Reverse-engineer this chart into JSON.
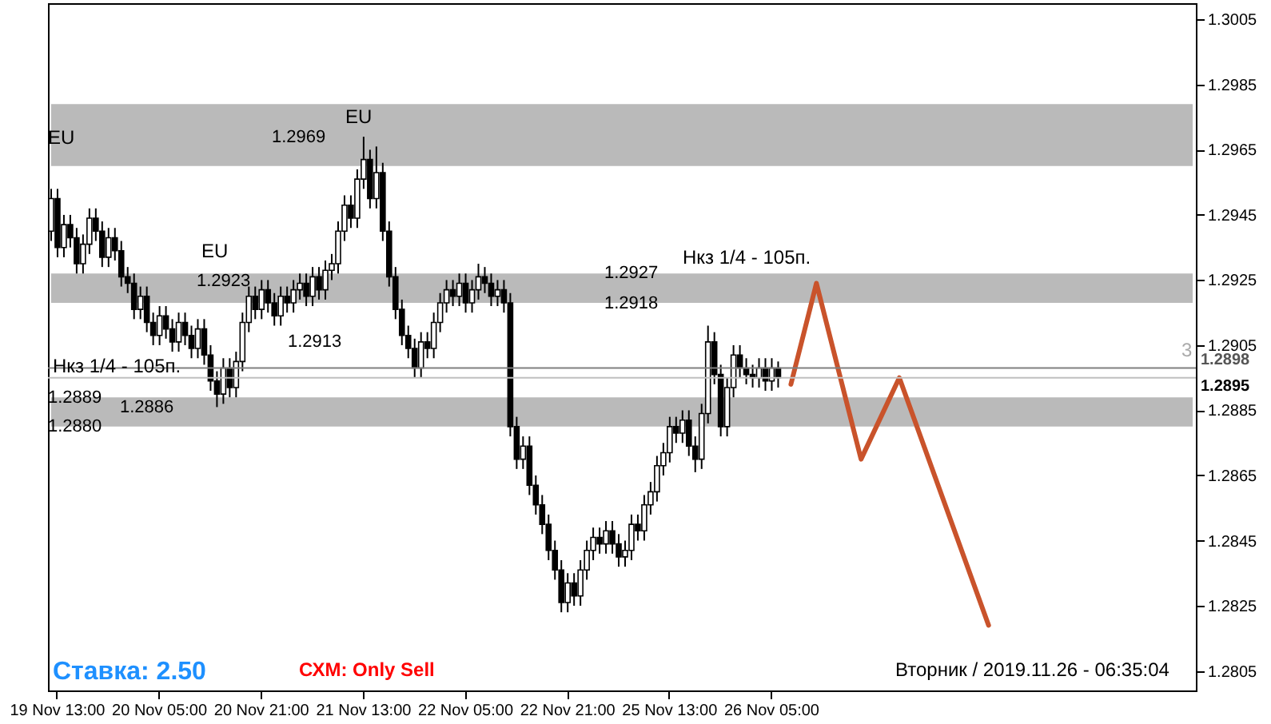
{
  "chart_data": {
    "type": "candlestick",
    "categories": [
      null,
      "19 Nov 13:00",
      null,
      null,
      null,
      null,
      null,
      null,
      null,
      null,
      null,
      null,
      null,
      null,
      null,
      null,
      null,
      "20 Nov 05:00",
      null,
      null,
      null,
      null,
      null,
      null,
      null,
      null,
      null,
      null,
      null,
      null,
      null,
      null,
      null,
      "20 Nov 21:00",
      null,
      null,
      null,
      null,
      null,
      null,
      null,
      null,
      null,
      null,
      null,
      null,
      null,
      null,
      null,
      "21 Nov 13:00",
      null,
      null,
      null,
      null,
      null,
      null,
      null,
      null,
      null,
      null,
      null,
      null,
      null,
      null,
      null,
      "22 Nov 05:00",
      null,
      null,
      null,
      null,
      null,
      null,
      null,
      null,
      null,
      null,
      null,
      null,
      null,
      null,
      null,
      "22 Nov 21:00",
      null,
      null,
      null,
      null,
      null,
      null,
      null,
      null,
      null,
      null,
      null,
      null,
      null,
      null,
      null,
      "25 Nov 13:00",
      null,
      null,
      null,
      null,
      null,
      null,
      null,
      null,
      null,
      null,
      null,
      null,
      null,
      null,
      null,
      "26 Nov 05:00",
      null,
      null,
      null,
      null,
      null,
      null,
      null,
      null,
      null,
      null,
      null,
      null,
      null,
      null,
      null,
      null,
      null,
      null,
      null,
      null,
      null,
      null,
      null,
      null,
      null,
      null,
      null,
      null,
      null,
      null,
      null,
      null,
      null,
      null,
      null,
      null,
      null,
      null,
      null,
      null,
      null,
      null,
      null,
      null,
      null,
      null,
      null,
      null,
      null,
      null,
      null,
      null,
      null,
      null,
      null,
      null,
      null,
      null,
      null,
      null,
      null,
      null,
      null,
      null,
      null,
      null
    ],
    "ohlc": [
      [
        1.294,
        1.2953,
        1.2937,
        1.295
      ],
      [
        1.295,
        1.2953,
        1.2932,
        1.2935
      ],
      [
        1.2935,
        1.2945,
        1.2932,
        1.2942
      ],
      [
        1.2942,
        1.2945,
        1.2935,
        1.2938
      ],
      [
        1.2938,
        1.2941,
        1.2927,
        1.293
      ],
      [
        1.293,
        1.2939,
        1.2927,
        1.2936
      ],
      [
        1.2936,
        1.2947,
        1.2933,
        1.2944
      ],
      [
        1.2944,
        1.2947,
        1.2937,
        1.294
      ],
      [
        1.294,
        1.2943,
        1.2929,
        1.2932
      ],
      [
        1.2932,
        1.2941,
        1.2929,
        1.2938
      ],
      [
        1.2938,
        1.2941,
        1.2931,
        1.2934
      ],
      [
        1.2934,
        1.2937,
        1.2923,
        1.2926
      ],
      [
        1.2926,
        1.2929,
        1.2921,
        1.2924
      ],
      [
        1.2924,
        1.2927,
        1.2913,
        1.2916
      ],
      [
        1.2916,
        1.2923,
        1.2913,
        1.292
      ],
      [
        1.292,
        1.2923,
        1.2909,
        1.2912
      ],
      [
        1.2912,
        1.2915,
        1.2905,
        1.2908
      ],
      [
        1.2908,
        1.2917,
        1.2905,
        1.2914
      ],
      [
        1.2914,
        1.2917,
        1.2907,
        1.291
      ],
      [
        1.291,
        1.2913,
        1.2903,
        1.2906
      ],
      [
        1.2906,
        1.2915,
        1.2903,
        1.2912
      ],
      [
        1.2912,
        1.2915,
        1.2905,
        1.2908
      ],
      [
        1.2908,
        1.2911,
        1.2901,
        1.2904
      ],
      [
        1.2904,
        1.2913,
        1.2901,
        1.291
      ],
      [
        1.291,
        1.2913,
        1.2899,
        1.2902
      ],
      [
        1.2902,
        1.2905,
        1.2891,
        1.2894
      ],
      [
        1.2894,
        1.2897,
        1.2886,
        1.289
      ],
      [
        1.289,
        1.2901,
        1.2887,
        1.2898
      ],
      [
        1.2898,
        1.2901,
        1.2889,
        1.2892
      ],
      [
        1.2892,
        1.2903,
        1.2889,
        1.29
      ],
      [
        1.29,
        1.2915,
        1.2897,
        1.2912
      ],
      [
        1.2912,
        1.2923,
        1.2909,
        1.292
      ],
      [
        1.292,
        1.2923,
        1.2913,
        1.2916
      ],
      [
        1.2916,
        1.2925,
        1.2913,
        1.2922
      ],
      [
        1.2922,
        1.2925,
        1.2915,
        1.2918
      ],
      [
        1.2918,
        1.2921,
        1.2911,
        1.2914
      ],
      [
        1.2914,
        1.2923,
        1.2911,
        1.292
      ],
      [
        1.292,
        1.2923,
        1.2915,
        1.2918
      ],
      [
        1.2918,
        1.2925,
        1.2915,
        1.2922
      ],
      [
        1.2922,
        1.2927,
        1.2919,
        1.2924
      ],
      [
        1.2924,
        1.2927,
        1.2917,
        1.292
      ],
      [
        1.292,
        1.2929,
        1.2917,
        1.2926
      ],
      [
        1.2926,
        1.2929,
        1.2919,
        1.2922
      ],
      [
        1.2922,
        1.2931,
        1.2919,
        1.2928
      ],
      [
        1.2928,
        1.2933,
        1.2925,
        1.293
      ],
      [
        1.293,
        1.2943,
        1.2927,
        1.294
      ],
      [
        1.294,
        1.2951,
        1.2937,
        1.2948
      ],
      [
        1.2948,
        1.2951,
        1.2941,
        1.2944
      ],
      [
        1.2944,
        1.2959,
        1.2941,
        1.2956
      ],
      [
        1.2956,
        1.2969,
        1.2953,
        1.2962
      ],
      [
        1.2962,
        1.2965,
        1.2947,
        1.295
      ],
      [
        1.295,
        1.2966,
        1.2947,
        1.2958
      ],
      [
        1.2958,
        1.2961,
        1.2937,
        1.294
      ],
      [
        1.294,
        1.2943,
        1.2923,
        1.2926
      ],
      [
        1.2926,
        1.2929,
        1.2913,
        1.2916
      ],
      [
        1.2916,
        1.2919,
        1.2905,
        1.2908
      ],
      [
        1.2908,
        1.2911,
        1.2901,
        1.2904
      ],
      [
        1.2904,
        1.2907,
        1.2895,
        1.2898
      ],
      [
        1.2898,
        1.2909,
        1.2895,
        1.2906
      ],
      [
        1.2906,
        1.2909,
        1.2901,
        1.2904
      ],
      [
        1.2904,
        1.2915,
        1.2901,
        1.2912
      ],
      [
        1.2912,
        1.2921,
        1.2909,
        1.2918
      ],
      [
        1.2918,
        1.2925,
        1.2915,
        1.2922
      ],
      [
        1.2922,
        1.2925,
        1.2917,
        1.292
      ],
      [
        1.292,
        1.2927,
        1.2917,
        1.2924
      ],
      [
        1.2924,
        1.2927,
        1.2915,
        1.2918
      ],
      [
        1.2918,
        1.2925,
        1.2915,
        1.2922
      ],
      [
        1.2922,
        1.293,
        1.2919,
        1.2926
      ],
      [
        1.2926,
        1.2929,
        1.2921,
        1.2924
      ],
      [
        1.2924,
        1.2927,
        1.2917,
        1.292
      ],
      [
        1.292,
        1.2925,
        1.2917,
        1.2922
      ],
      [
        1.2922,
        1.2925,
        1.2915,
        1.2918
      ],
      [
        1.2918,
        1.2921,
        1.2877,
        1.288
      ],
      [
        1.288,
        1.2883,
        1.2867,
        1.287
      ],
      [
        1.287,
        1.2877,
        1.2867,
        1.2874
      ],
      [
        1.2874,
        1.2877,
        1.2859,
        1.2862
      ],
      [
        1.2862,
        1.2865,
        1.2853,
        1.2856
      ],
      [
        1.2856,
        1.2859,
        1.2847,
        1.285
      ],
      [
        1.285,
        1.2853,
        1.2839,
        1.2842
      ],
      [
        1.2842,
        1.2845,
        1.2833,
        1.2836
      ],
      [
        1.2836,
        1.2839,
        1.2823,
        1.2826
      ],
      [
        1.2826,
        1.2835,
        1.2823,
        1.2832
      ],
      [
        1.2832,
        1.2835,
        1.2825,
        1.2828
      ],
      [
        1.2828,
        1.2839,
        1.2825,
        1.2836
      ],
      [
        1.2836,
        1.2845,
        1.2833,
        1.2842
      ],
      [
        1.2842,
        1.2849,
        1.2839,
        1.2846
      ],
      [
        1.2846,
        1.2849,
        1.2841,
        1.2844
      ],
      [
        1.2844,
        1.2851,
        1.2841,
        1.2848
      ],
      [
        1.2848,
        1.2851,
        1.2841,
        1.2844
      ],
      [
        1.2844,
        1.2847,
        1.2837,
        1.284
      ],
      [
        1.284,
        1.2845,
        1.2837,
        1.2842
      ],
      [
        1.2842,
        1.2853,
        1.2839,
        1.285
      ],
      [
        1.285,
        1.2853,
        1.2845,
        1.2848
      ],
      [
        1.2848,
        1.2859,
        1.2845,
        1.2856
      ],
      [
        1.2856,
        1.2863,
        1.2853,
        1.286
      ],
      [
        1.286,
        1.2871,
        1.2857,
        1.2868
      ],
      [
        1.2868,
        1.2875,
        1.2865,
        1.2872
      ],
      [
        1.2872,
        1.2883,
        1.2869,
        1.288
      ],
      [
        1.288,
        1.2883,
        1.2875,
        1.2878
      ],
      [
        1.2878,
        1.2885,
        1.2875,
        1.2882
      ],
      [
        1.2882,
        1.2885,
        1.2871,
        1.2874
      ],
      [
        1.2874,
        1.2877,
        1.2866,
        1.287
      ],
      [
        1.287,
        1.2887,
        1.2867,
        1.2884
      ],
      [
        1.2884,
        1.2911,
        1.2881,
        1.2906
      ],
      [
        1.2906,
        1.2909,
        1.2893,
        1.2896
      ],
      [
        1.2896,
        1.2899,
        1.2877,
        1.288
      ],
      [
        1.288,
        1.2895,
        1.2877,
        1.2892
      ],
      [
        1.2892,
        1.2905,
        1.2889,
        1.2902
      ],
      [
        1.2902,
        1.2905,
        1.2895,
        1.2898
      ],
      [
        1.2898,
        1.2901,
        1.2893,
        1.2896
      ],
      [
        1.2896,
        1.2899,
        1.2892,
        1.2895
      ],
      [
        1.2895,
        1.2901,
        1.2892,
        1.2898
      ],
      [
        1.2898,
        1.2901,
        1.2891,
        1.2894
      ],
      [
        1.2894,
        1.2901,
        1.2891,
        1.2898
      ],
      [
        1.2898,
        1.29,
        1.2892,
        1.2895
      ],
      null,
      null,
      null,
      null,
      null,
      null,
      null,
      null,
      null,
      null,
      null,
      null,
      null,
      null,
      null,
      null,
      null,
      null,
      null,
      null,
      null,
      null,
      null,
      null,
      null,
      null,
      null,
      null,
      null,
      null,
      null,
      null,
      null,
      null,
      null,
      null,
      null,
      null,
      null,
      null,
      null,
      null,
      null,
      null,
      null,
      null,
      null,
      null,
      null,
      null,
      null,
      null,
      null,
      null,
      null,
      null,
      null,
      null,
      null,
      null,
      null,
      null,
      null,
      null,
      null
    ],
    "series": [
      {
        "type": "line",
        "color": "#c9532b",
        "values": [
          null,
          null,
          null,
          null,
          null,
          null,
          null,
          null,
          null,
          null,
          null,
          null,
          null,
          null,
          null,
          null,
          null,
          null,
          null,
          null,
          null,
          null,
          null,
          null,
          null,
          null,
          null,
          null,
          null,
          null,
          null,
          null,
          null,
          null,
          null,
          null,
          null,
          null,
          null,
          null,
          null,
          null,
          null,
          null,
          null,
          null,
          null,
          null,
          null,
          null,
          null,
          null,
          null,
          null,
          null,
          null,
          null,
          null,
          null,
          null,
          null,
          null,
          null,
          null,
          null,
          null,
          null,
          null,
          null,
          null,
          null,
          null,
          null,
          null,
          null,
          null,
          null,
          null,
          null,
          null,
          null,
          null,
          null,
          null,
          null,
          null,
          null,
          null,
          null,
          null,
          null,
          null,
          null,
          null,
          null,
          null,
          null,
          null,
          null,
          null,
          null,
          null,
          null,
          null,
          null,
          null,
          null,
          null,
          null,
          null,
          null,
          null,
          null,
          null,
          null,
          null,
          1.2893,
          null,
          null,
          null,
          1.2924,
          null,
          null,
          null,
          null,
          null,
          null,
          1.287,
          null,
          null,
          null,
          null,
          null,
          1.2895,
          null,
          null,
          null,
          null,
          null,
          null,
          null,
          null,
          null,
          null,
          null,
          null,
          null,
          1.2819,
          null,
          null,
          null,
          null,
          null,
          null,
          null,
          null,
          null,
          null,
          null,
          null,
          null,
          null,
          null,
          null,
          null,
          null,
          null,
          null,
          null,
          null,
          null,
          null,
          null,
          null,
          null,
          null,
          null,
          null,
          null,
          null
        ]
      }
    ],
    "ylim": [
      1.2799,
      1.301
    ],
    "yticks": [
      1.2805,
      1.2825,
      1.2845,
      1.2865,
      1.2885,
      1.2905,
      1.2925,
      1.2945,
      1.2965,
      1.2985,
      1.3005
    ],
    "bands": [
      {
        "axis": "y",
        "from": 1.296,
        "to": 1.2979,
        "color": "#a9a9a9"
      },
      {
        "axis": "y",
        "from": 1.288,
        "to": 1.2889,
        "color": "#a9a9a9"
      },
      {
        "axis": "y",
        "from": 1.2918,
        "to": 1.2927,
        "color": "#a9a9a9"
      }
    ],
    "ref_lines": [
      {
        "axis": "y",
        "value": 1.2898,
        "label": "1.2898",
        "color": "#808080"
      },
      {
        "axis": "y",
        "value": 1.2895,
        "label": "1.2895",
        "color": "#c0c0c0"
      }
    ],
    "annotations": [
      "Ставка: 2.50",
      "СХМ: Only Sell",
      "Вторник / 2019.11.26 - 06:35:04",
      "Нкз 1/4 - 105п.",
      "Нкз 1/4 - 105п.",
      "EU",
      "EU",
      "EU",
      "1.2969",
      "1.2923",
      "1.2913",
      "1.2889",
      "1.2880",
      "1.2886",
      "1.2927",
      "1.2918",
      "3"
    ]
  }
}
